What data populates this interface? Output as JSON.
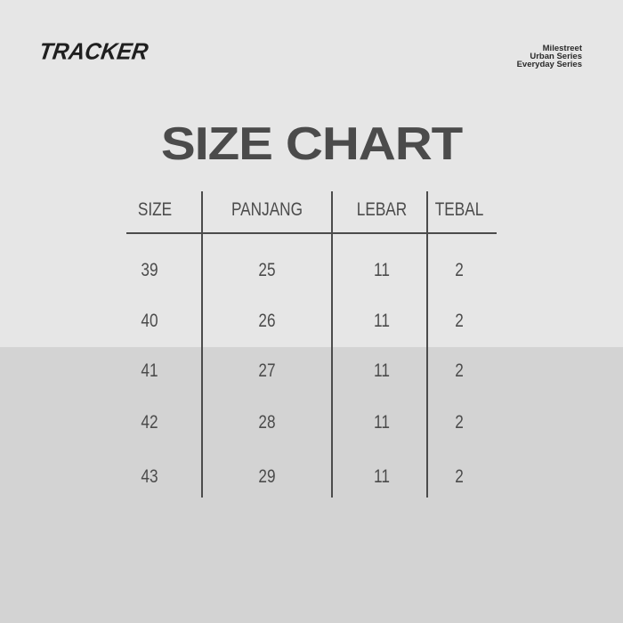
{
  "brand": "TRACKER",
  "series": [
    "Milestreet",
    "Urban Series",
    "Everyday Series"
  ],
  "title": "SIZE CHART",
  "colors": {
    "background_top": "#e6e6e6",
    "background_bottom": "#d3d3d3",
    "text": "#4b4b4b"
  },
  "table": {
    "headers": [
      "SIZE",
      "PANJANG",
      "LEBAR",
      "TEBAL"
    ],
    "rows": [
      [
        "39",
        "25",
        "11",
        "2"
      ],
      [
        "40",
        "26",
        "11",
        "2"
      ],
      [
        "41",
        "27",
        "11",
        "2"
      ],
      [
        "42",
        "28",
        "11",
        "2"
      ],
      [
        "43",
        "29",
        "11",
        "2"
      ]
    ]
  }
}
